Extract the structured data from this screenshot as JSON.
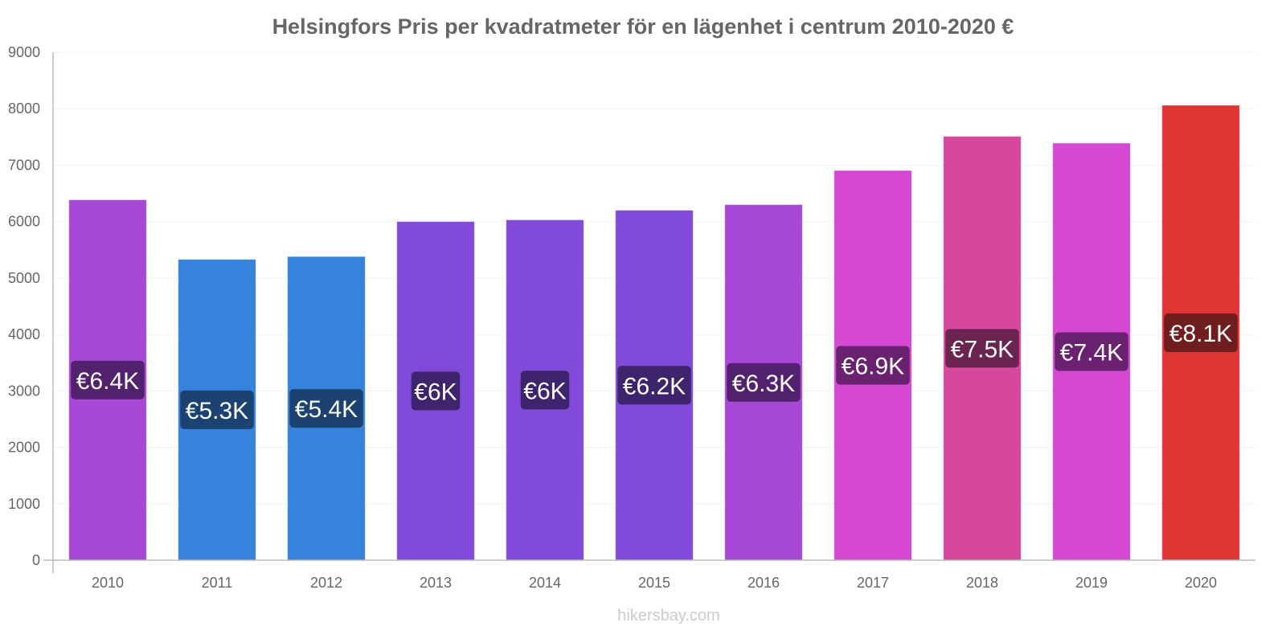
{
  "chart_data": {
    "type": "bar",
    "title": "Helsingfors Pris per kvadratmeter för en lägenhet i centrum 2010-2020 €",
    "xlabel": "",
    "ylabel": "",
    "ylim": [
      0,
      9000
    ],
    "yticks": [
      0,
      1000,
      2000,
      3000,
      4000,
      5000,
      6000,
      7000,
      8000,
      9000
    ],
    "grid": true,
    "legend": "none",
    "categories": [
      "2010",
      "2011",
      "2012",
      "2013",
      "2014",
      "2015",
      "2016",
      "2017",
      "2018",
      "2019",
      "2020"
    ],
    "values": [
      6385,
      5330,
      5380,
      6000,
      6030,
      6200,
      6300,
      6905,
      7510,
      7390,
      8060
    ],
    "data_labels": [
      "€6.4K",
      "€5.3K",
      "€5.4K",
      "€6K",
      "€6K",
      "€6.2K",
      "€6.3K",
      "€6.9K",
      "€7.5K",
      "€7.4K",
      "€8.1K"
    ],
    "bar_colors": [
      "#a748d6",
      "#3583dd",
      "#3583dd",
      "#814ad8",
      "#814ad8",
      "#814ad8",
      "#a748d6",
      "#d548d3",
      "#d7489c",
      "#d548d3",
      "#e03535"
    ],
    "label_bg_colors": [
      "#53226f",
      "#1b4271",
      "#1b4271",
      "#3d246c",
      "#3d246c",
      "#3d246c",
      "#53226f",
      "#6a2270",
      "#6b2350",
      "#6a2270",
      "#6f1d1d"
    ]
  },
  "footer": {
    "watermark": "hikersbay.com"
  }
}
